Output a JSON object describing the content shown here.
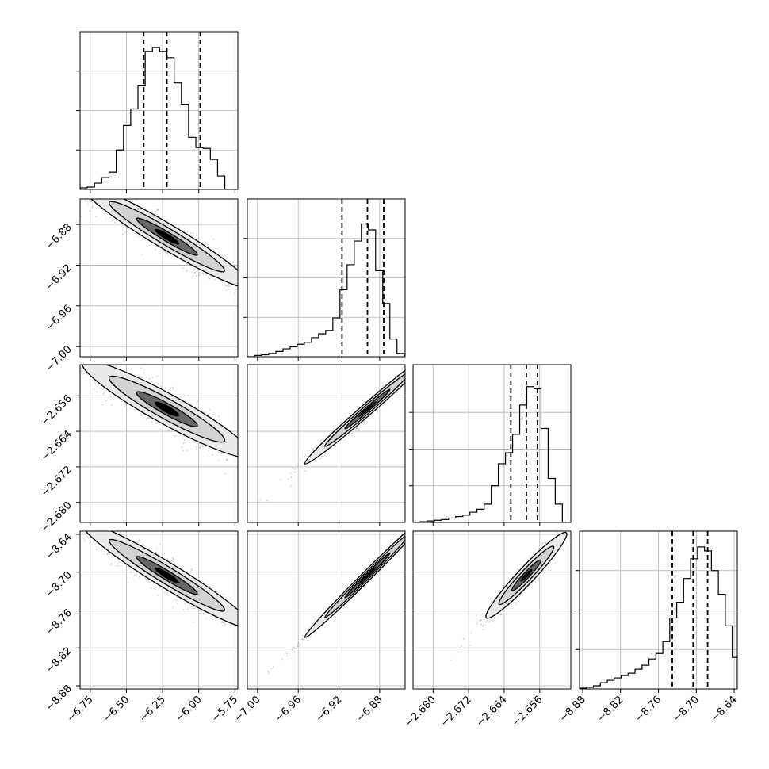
{
  "chart_data": {
    "type": "corner",
    "params": [
      {
        "range": [
          -6.82,
          -5.73
        ],
        "ticks": [
          -6.75,
          -6.5,
          -6.25,
          -6.0,
          -5.75
        ],
        "tick_labels": [
          "−6.75",
          "−6.50",
          "−6.25",
          "−6.00",
          "−5.75"
        ],
        "quantiles": [
          -6.38,
          -6.22,
          -5.99
        ],
        "hist_edges": [
          -6.82,
          -6.77,
          -6.72,
          -6.67,
          -6.62,
          -6.57,
          -6.52,
          -6.47,
          -6.42,
          -6.37,
          -6.32,
          -6.27,
          -6.22,
          -6.17,
          -6.12,
          -6.07,
          -6.02,
          -5.97,
          -5.92,
          -5.87,
          -5.82,
          -5.77,
          -5.73
        ],
        "hist_counts": [
          2,
          3,
          8,
          15,
          22,
          50,
          81,
          102,
          132,
          175,
          180,
          175,
          167,
          135,
          108,
          66,
          53,
          52,
          38,
          17,
          0,
          0
        ],
        "hist_ymax": 200,
        "hist_yticks": [
          50,
          100,
          150
        ]
      },
      {
        "range": [
          -7.01,
          -6.855
        ],
        "ticks": [
          -7.0,
          -6.96,
          -6.92,
          -6.88
        ],
        "tick_labels": [
          "−7.00",
          "−6.96",
          "−6.92",
          "−6.88"
        ],
        "quantiles": [
          -6.917,
          -6.892,
          -6.876
        ],
        "hist_edges": [
          -7.01,
          -7.003,
          -6.996,
          -6.989,
          -6.982,
          -6.975,
          -6.968,
          -6.961,
          -6.954,
          -6.947,
          -6.94,
          -6.933,
          -6.926,
          -6.919,
          -6.912,
          -6.905,
          -6.898,
          -6.891,
          -6.884,
          -6.877,
          -6.87,
          -6.863,
          -6.856
        ],
        "hist_counts": [
          0,
          2,
          3,
          5,
          8,
          12,
          15,
          19,
          22,
          29,
          35,
          40,
          59,
          102,
          140,
          176,
          202,
          193,
          131,
          81,
          27,
          5
        ],
        "hist_ymax": 240,
        "hist_yticks": [
          60,
          120,
          180
        ]
      },
      {
        "range": [
          -2.6845,
          -2.649
        ],
        "ticks": [
          -2.68,
          -2.672,
          -2.664,
          -2.656
        ],
        "tick_labels": [
          "−2.680",
          "−2.672",
          "−2.664",
          "−2.656"
        ],
        "quantiles": [
          -2.6625,
          -2.659,
          -2.6565
        ],
        "hist_edges": [
          -2.6845,
          -2.6829,
          -2.6813,
          -2.6797,
          -2.6781,
          -2.6765,
          -2.6749,
          -2.6733,
          -2.6717,
          -2.6701,
          -2.6685,
          -2.6669,
          -2.6653,
          -2.6637,
          -2.6621,
          -2.6605,
          -2.6589,
          -2.6573,
          -2.6557,
          -2.6541,
          -2.6525,
          -2.6509,
          -2.649
        ],
        "hist_counts": [
          0,
          1,
          2,
          3,
          4,
          6,
          8,
          10,
          14,
          18,
          25,
          50,
          80,
          95,
          120,
          160,
          185,
          182,
          128,
          60,
          25,
          0
        ],
        "hist_ymax": 215,
        "hist_yticks": [
          50,
          100,
          150
        ]
      },
      {
        "range": [
          -8.885,
          -8.635
        ],
        "ticks": [
          -8.88,
          -8.82,
          -8.76,
          -8.7,
          -8.64
        ],
        "tick_labels": [
          "−8.88",
          "−8.82",
          "−8.76",
          "−8.70",
          "−8.64"
        ],
        "quantiles": [
          -8.738,
          -8.705,
          -8.682
        ],
        "hist_edges": [
          -8.885,
          -8.874,
          -8.863,
          -8.852,
          -8.841,
          -8.83,
          -8.819,
          -8.808,
          -8.797,
          -8.786,
          -8.775,
          -8.764,
          -8.753,
          -8.742,
          -8.731,
          -8.72,
          -8.709,
          -8.698,
          -8.687,
          -8.676,
          -8.665,
          -8.654,
          -8.643,
          -8.635
        ],
        "hist_counts": [
          1,
          2,
          4,
          8,
          11,
          14,
          17,
          20,
          25,
          30,
          38,
          45,
          60,
          90,
          110,
          140,
          165,
          180,
          175,
          150,
          120,
          80,
          40
        ],
        "hist_ymax": 200,
        "hist_yticks": [
          50,
          100,
          150
        ]
      }
    ],
    "correlations": [
      {
        "i": 1,
        "j": 0,
        "slope": -0.085,
        "curv": -0.03,
        "scatter": 0.15
      },
      {
        "i": 2,
        "j": 0,
        "slope": -0.018,
        "curv": -0.006,
        "scatter": 0.18
      },
      {
        "i": 2,
        "j": 1,
        "slope": 0.2,
        "curv": 0.0,
        "scatter": 0.07
      },
      {
        "i": 3,
        "j": 0,
        "slope": -0.14,
        "curv": -0.04,
        "scatter": 0.15
      },
      {
        "i": 3,
        "j": 1,
        "slope": 1.6,
        "curv": 0.0,
        "scatter": 0.03
      },
      {
        "i": 3,
        "j": 2,
        "slope": 7.5,
        "curv": 0.0,
        "scatter": 0.1
      }
    ],
    "grid": true,
    "colors": {
      "line": "#000000",
      "grid": "#b0b0b0",
      "points": "#000000"
    }
  }
}
